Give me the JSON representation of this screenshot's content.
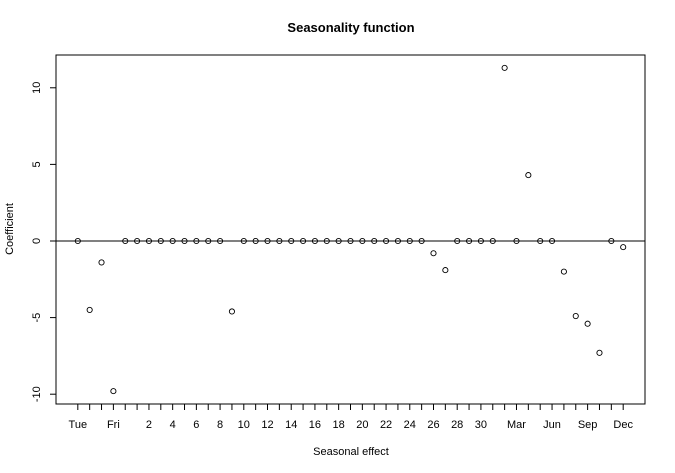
{
  "chart_data": {
    "type": "scatter",
    "title": "Seasonality function",
    "x_label": "Seasonal effect",
    "y_label": "Coefficient",
    "categories": [
      "Tue",
      null,
      null,
      "Fri",
      null,
      null,
      "2",
      null,
      "4",
      null,
      "6",
      null,
      "8",
      null,
      "10",
      null,
      "12",
      null,
      "14",
      null,
      "16",
      null,
      "18",
      null,
      "20",
      null,
      "22",
      null,
      "24",
      null,
      "26",
      null,
      "28",
      null,
      "30",
      null,
      null,
      "Mar",
      null,
      null,
      "Jun",
      null,
      null,
      "Sep",
      null,
      null,
      "Dec"
    ],
    "values": [
      0,
      -4.5,
      -1.4,
      -9.8,
      0,
      0,
      0,
      0,
      0,
      0,
      0,
      0,
      0,
      -4.6,
      0,
      0,
      0,
      0,
      0,
      0,
      0,
      0,
      0,
      0,
      0,
      0,
      0,
      0,
      0,
      0,
      -0.8,
      -1.9,
      0,
      0,
      0,
      0,
      11.3,
      0,
      4.3,
      0,
      0,
      -2.0,
      -4.9,
      -5.4,
      -7.3,
      0,
      -0.4
    ],
    "ylim": [
      -10.64,
      12.14
    ],
    "yticks": [
      -10,
      -5,
      0,
      5,
      10
    ],
    "hline": 0,
    "color": "#000000"
  }
}
